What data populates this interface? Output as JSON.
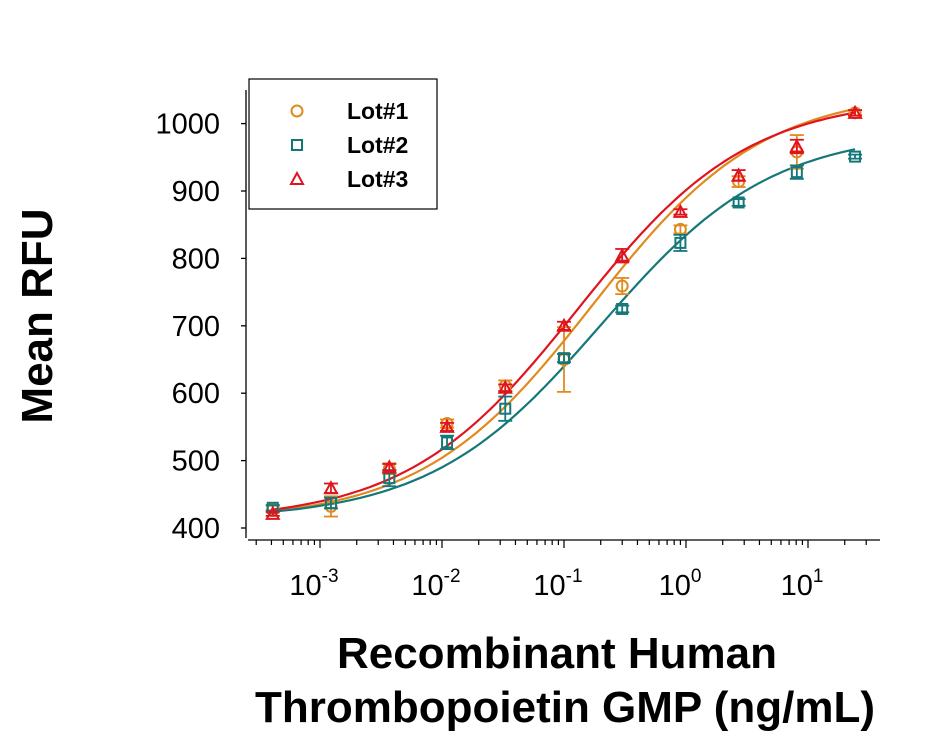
{
  "chart_data": {
    "type": "scatter",
    "title": "",
    "xlabel_lines": [
      "Recombinant Human",
      "Thrombopoietin GMP (ng/mL)"
    ],
    "ylabel": "Mean RFU",
    "xscale": "log",
    "xlim": [
      0.00025,
      40
    ],
    "ylim": [
      400,
      1040
    ],
    "x_ticks": [
      {
        "value": 0.001,
        "base": "10",
        "exp": "-3"
      },
      {
        "value": 0.01,
        "base": "10",
        "exp": "-2"
      },
      {
        "value": 0.1,
        "base": "10",
        "exp": "-1"
      },
      {
        "value": 1,
        "base": "10",
        "exp": "0"
      },
      {
        "value": 10,
        "base": "10",
        "exp": "1"
      }
    ],
    "y_ticks": [
      400,
      500,
      600,
      700,
      800,
      900,
      1000
    ],
    "grid": false,
    "legend_position": "top-left",
    "x": [
      0.00041,
      0.00123,
      0.0037,
      0.011,
      0.033,
      0.1,
      0.3,
      0.9,
      2.7,
      8.1,
      24.3
    ],
    "series": [
      {
        "name": "Lot#1",
        "marker": "circle",
        "color": "#E08A1E",
        "values": [
          428,
          432,
          488,
          555,
          611,
          650,
          759,
          843,
          914,
          958,
          1016
        ],
        "errors": [
          5,
          15,
          8,
          6,
          8,
          48,
          12,
          6,
          8,
          25,
          4
        ]
      },
      {
        "name": "Lot#2",
        "marker": "square",
        "color": "#14787A",
        "values": [
          430,
          437,
          474,
          527,
          577,
          652,
          725,
          823,
          883,
          928,
          951
        ],
        "errors": [
          4,
          8,
          12,
          10,
          18,
          6,
          5,
          12,
          5,
          10,
          3
        ]
      },
      {
        "name": "Lot#3",
        "marker": "triangle",
        "color": "#E0141E",
        "values": [
          421,
          459,
          490,
          550,
          608,
          700,
          804,
          869,
          923,
          966,
          1016
        ],
        "errors": [
          3,
          7,
          5,
          6,
          5,
          6,
          10,
          4,
          8,
          10,
          4
        ]
      }
    ],
    "fit_curves": [
      {
        "name": "Lot#1",
        "color": "#E08A1E",
        "bottom": 410,
        "top": 1050,
        "ec50": 0.17,
        "hill": 0.62
      },
      {
        "name": "Lot#2",
        "color": "#14787A",
        "bottom": 412,
        "top": 990,
        "ec50": 0.2,
        "hill": 0.62
      },
      {
        "name": "Lot#3",
        "color": "#E0141E",
        "bottom": 410,
        "top": 1040,
        "ec50": 0.13,
        "hill": 0.62
      }
    ]
  }
}
